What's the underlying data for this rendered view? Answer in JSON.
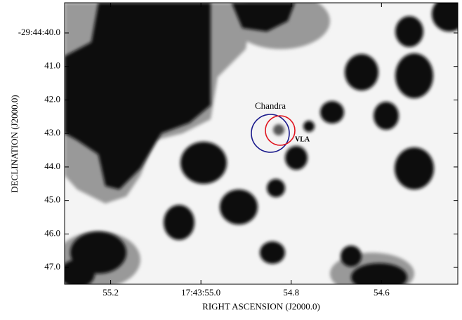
{
  "chart_data": {
    "type": "image",
    "xlabel": "RIGHT ASCENSION (J2000.0)",
    "ylabel": "DECLINATION (J2000.0)",
    "xlim": [
      55.302,
      54.431
    ],
    "ylim": [
      39.1,
      47.5
    ],
    "xticks": [
      {
        "value": 55.2,
        "label": "55.2"
      },
      {
        "value": 55.0,
        "label": "17:43:55.0"
      },
      {
        "value": 54.8,
        "label": "54.8"
      },
      {
        "value": 54.6,
        "label": "54.6"
      }
    ],
    "yticks": [
      {
        "value": 40,
        "label": "-29:44:40.0"
      },
      {
        "value": 41,
        "label": "41.0"
      },
      {
        "value": 42,
        "label": "42.0"
      },
      {
        "value": 43,
        "label": "43.0"
      },
      {
        "value": 44,
        "label": "44.0"
      },
      {
        "value": 45,
        "label": "45.0"
      },
      {
        "value": 46,
        "label": "46.0"
      },
      {
        "value": 47,
        "label": "47.0"
      }
    ],
    "annotations": [
      {
        "text": "Chandra",
        "color": "#1a1a8c"
      },
      {
        "text": "VLA",
        "color": "#e0141e"
      }
    ]
  }
}
